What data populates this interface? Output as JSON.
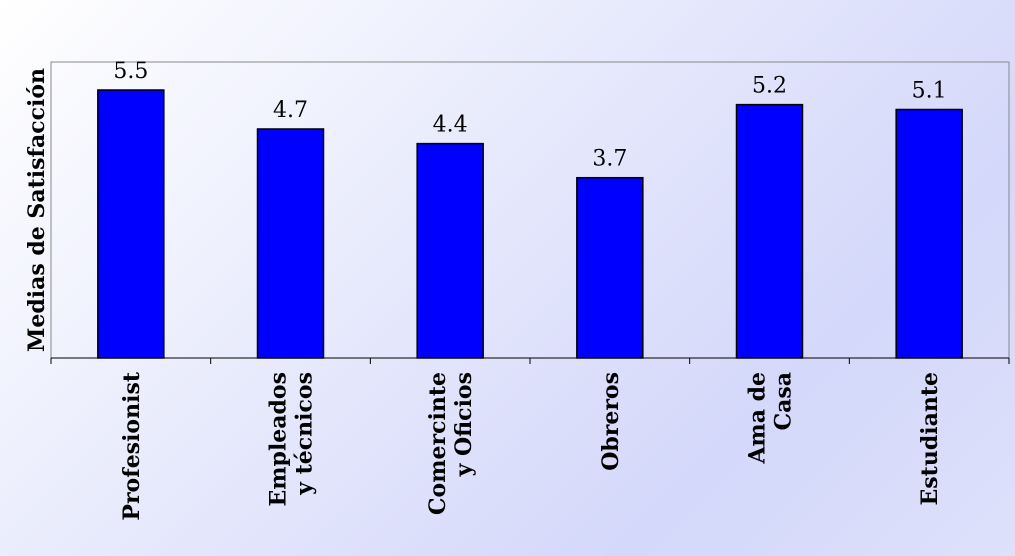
{
  "chart_data": {
    "type": "bar",
    "ylabel": "Medias de Satisfacción",
    "categories": [
      [
        "Profesionist"
      ],
      [
        "Empleados",
        "y técnicos"
      ],
      [
        "Comercinte",
        "y Oficios"
      ],
      [
        "Obreros"
      ],
      [
        "Ama de",
        "Casa"
      ],
      [
        "Estudiante"
      ]
    ],
    "values": [
      5.5,
      4.7,
      4.4,
      3.7,
      5.2,
      5.1
    ],
    "value_labels": [
      "5.5",
      "4.7",
      "4.4",
      "3.7",
      "5.2",
      "5.1"
    ],
    "ylim": [
      0,
      6.1
    ],
    "bar_color": "#0000ff",
    "grid": false,
    "legend": "none"
  }
}
